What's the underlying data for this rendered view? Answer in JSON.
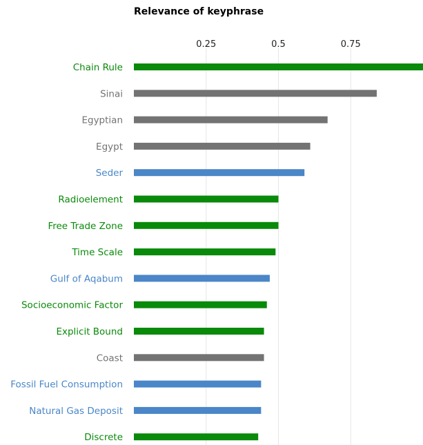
{
  "chart_data": {
    "type": "bar",
    "orientation": "horizontal",
    "title": "Relevance of keyphrase",
    "xlabel": "",
    "ylabel": "",
    "xlim": [
      0,
      1
    ],
    "xticks": [
      "0.25",
      "0.5",
      "0.75"
    ],
    "xtick_values": [
      0.25,
      0.5,
      0.75
    ],
    "grid": true,
    "legend": "none",
    "colors": {
      "green": "#0a8a0a",
      "gray": "#737373",
      "blue": "#4a86c8"
    },
    "categories": [
      "Chain Rule",
      "Sinai",
      "Egyptian",
      "Egypt",
      "Seder",
      "Radioelement",
      "Free Trade Zone",
      "Time Scale",
      "Gulf of Aqabum",
      "Socioeconomic Factor",
      "Explicit Bound",
      "Coast",
      "Fossil Fuel Consumption",
      "Natural Gas Deposit",
      "Discrete"
    ],
    "values": [
      1.0,
      0.84,
      0.67,
      0.61,
      0.59,
      0.5,
      0.5,
      0.49,
      0.47,
      0.46,
      0.45,
      0.45,
      0.44,
      0.44,
      0.43
    ],
    "category_colors": [
      "green",
      "gray",
      "gray",
      "gray",
      "blue",
      "green",
      "green",
      "green",
      "blue",
      "green",
      "green",
      "gray",
      "blue",
      "blue",
      "green"
    ]
  }
}
